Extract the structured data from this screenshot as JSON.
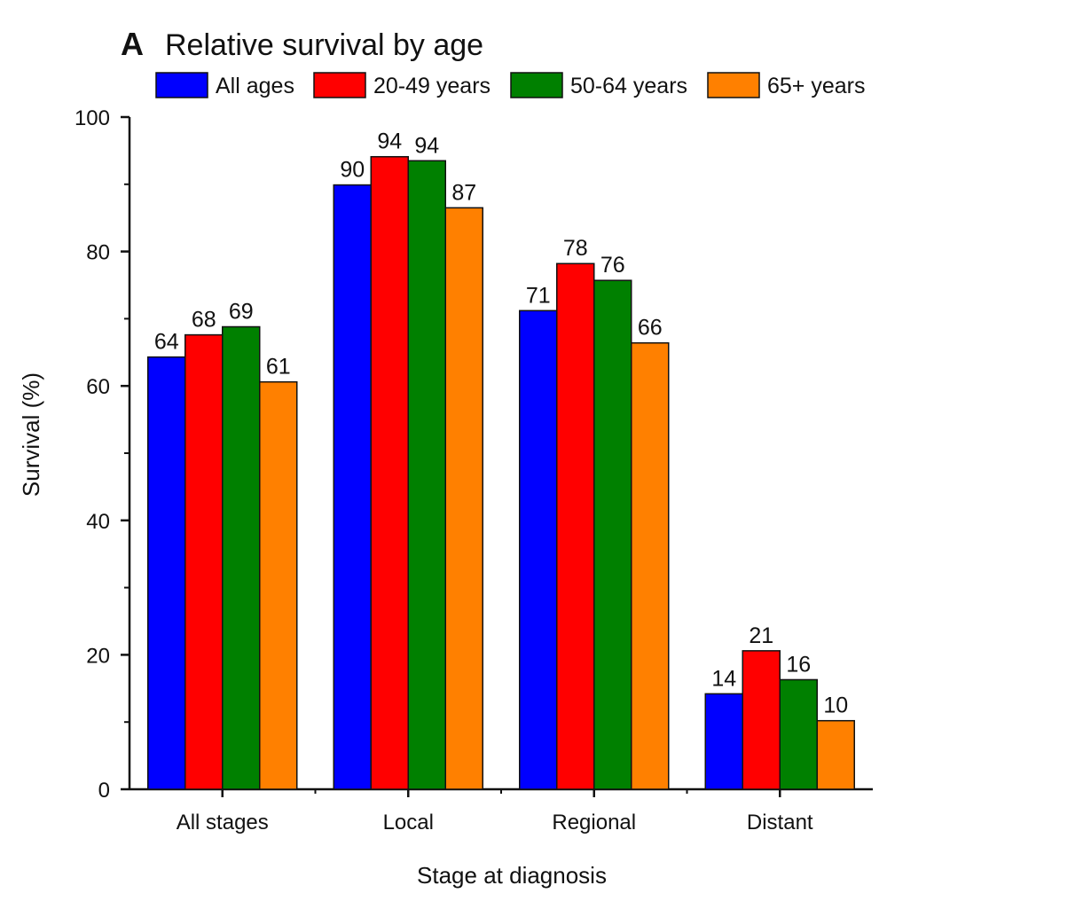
{
  "panel_letter": "A",
  "colors": {
    "All ages": "#0000ff",
    "20-49 years": "#ff0000",
    "50-64 years": "#008000",
    "65+ years": "#ff8000"
  },
  "chart_data": {
    "type": "bar",
    "title": "Relative survival by age",
    "xlabel": "Stage at diagnosis",
    "ylabel": "Survival (%)",
    "ylim": [
      0,
      100
    ],
    "yticks": [
      0,
      20,
      40,
      60,
      80,
      100
    ],
    "categories": [
      "All stages",
      "Local",
      "Regional",
      "Distant"
    ],
    "legend_position": "top",
    "grid": false,
    "series": [
      {
        "name": "All ages",
        "values": [
          64.3,
          89.9,
          71.2,
          14.2
        ],
        "labels": [
          "64",
          "90",
          "71",
          "14"
        ]
      },
      {
        "name": "20-49 years",
        "values": [
          67.6,
          94.1,
          78.2,
          20.6
        ],
        "labels": [
          "68",
          "94",
          "78",
          "21"
        ]
      },
      {
        "name": "50-64 years",
        "values": [
          68.8,
          93.5,
          75.7,
          16.3
        ],
        "labels": [
          "69",
          "94",
          "76",
          "16"
        ]
      },
      {
        "name": "65+ years",
        "values": [
          60.6,
          86.5,
          66.4,
          10.2
        ],
        "labels": [
          "61",
          "87",
          "66",
          "10"
        ]
      }
    ]
  }
}
